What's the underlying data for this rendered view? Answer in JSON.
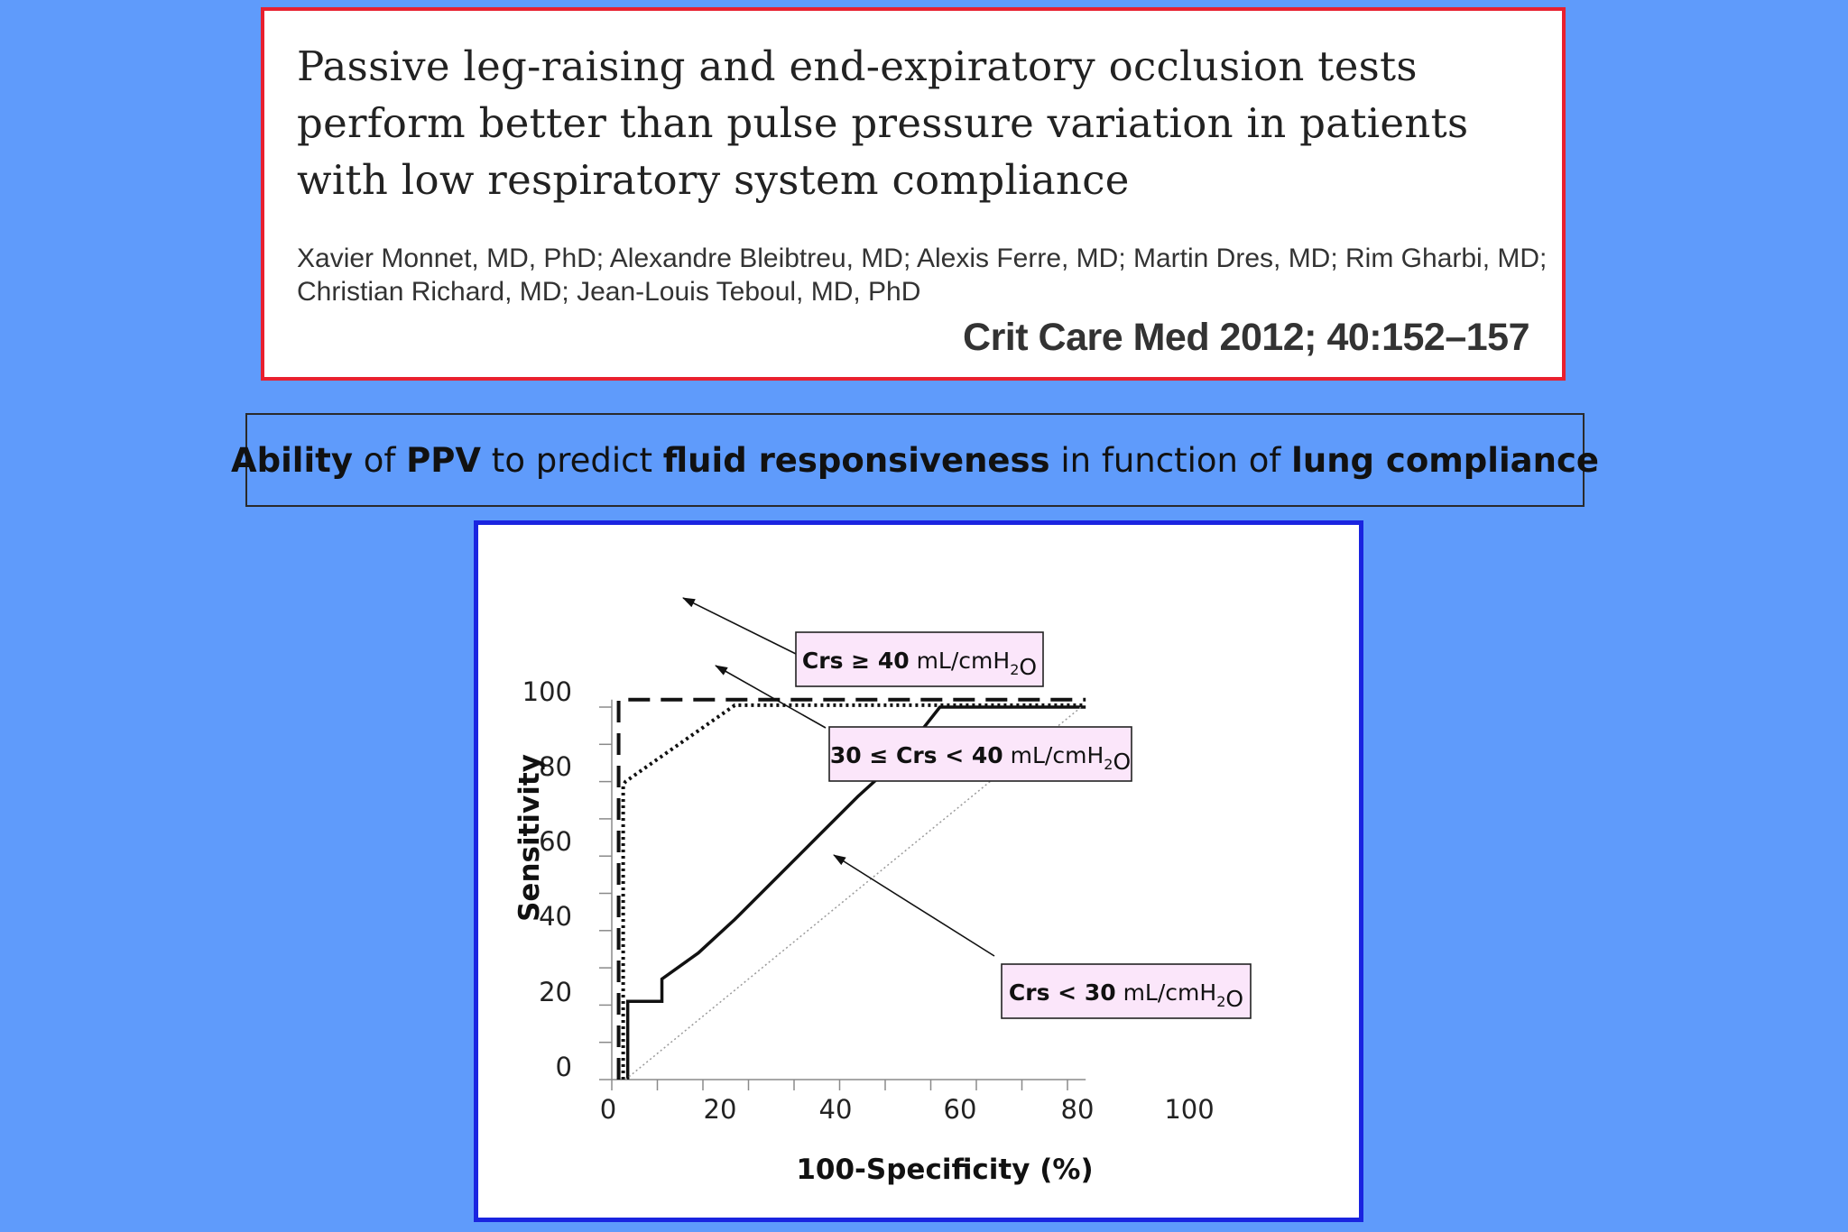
{
  "citation": {
    "title": "Passive leg-raising and end-expiratory occlusion tests perform better than pulse pressure variation in patients with low respiratory system compliance",
    "authors": "Xavier Monnet, MD, PhD; Alexandre Bleibtreu, MD; Alexis Ferre, MD; Martin Dres, MD; Rim Gharbi, MD; Christian Richard, MD; Jean-Louis Teboul, MD, PhD",
    "journal": "Crit Care Med 2012; 40:152–157",
    "border_color": "#e8202f"
  },
  "headline": {
    "parts": [
      {
        "text": "Ability",
        "bold": true
      },
      {
        "text": " of ",
        "bold": false
      },
      {
        "text": "PPV",
        "bold": true
      },
      {
        "text": " to predict ",
        "bold": false
      },
      {
        "text": "fluid responsiveness",
        "bold": true
      },
      {
        "text": " in function of ",
        "bold": false
      },
      {
        "text": "lung compliance",
        "bold": true
      }
    ]
  },
  "colors": {
    "background": "#5f9bfb",
    "figure_border": "#1a24e0",
    "label_fill": "#fbe6fa"
  },
  "chart_data": {
    "type": "line",
    "xlabel": "100-Specificity (%)",
    "ylabel": "Sensitivity",
    "xlim": [
      0,
      100
    ],
    "ylim": [
      0,
      100
    ],
    "xticks": [
      "0",
      "20",
      "40",
      "60",
      "80",
      "100"
    ],
    "yticks": [
      "0",
      "20",
      "40",
      "60",
      "80",
      "100"
    ],
    "series": [
      {
        "label_parts": [
          {
            "t": "Crs ≥ 40",
            "b": true
          },
          {
            "t": " mL/cmH",
            "b": false
          },
          {
            "t": "2",
            "sub": true
          },
          {
            "t": "O",
            "b": false
          }
        ],
        "style": "dashed",
        "x": [
          1.5,
          1.5,
          104
        ],
        "y": [
          0,
          102,
          102
        ]
      },
      {
        "label_parts": [
          {
            "t": "30 ≤ Crs < 40",
            "b": true
          },
          {
            "t": " mL/cmH",
            "b": false
          },
          {
            "t": "2",
            "sub": true
          },
          {
            "t": "O",
            "b": false
          }
        ],
        "style": "dotted",
        "x": [
          2.5,
          2.5,
          3,
          27,
          104
        ],
        "y": [
          0,
          79,
          80,
          100.5,
          100.5
        ]
      },
      {
        "label_parts": [
          {
            "t": "Crs < 30",
            "b": true
          },
          {
            "t": " mL/cmH",
            "b": false
          },
          {
            "t": "2",
            "sub": true
          },
          {
            "t": "O",
            "b": false
          }
        ],
        "style": "solid",
        "x": [
          3.5,
          3.5,
          11,
          11,
          19,
          27,
          36,
          45,
          54,
          63,
          72,
          104
        ],
        "y": [
          0,
          21,
          21,
          27,
          34,
          43,
          54,
          65,
          76,
          86,
          100,
          100
        ]
      },
      {
        "label_parts": [],
        "style": "reference",
        "x": [
          3,
          103
        ],
        "y": [
          0,
          100
        ]
      }
    ]
  }
}
